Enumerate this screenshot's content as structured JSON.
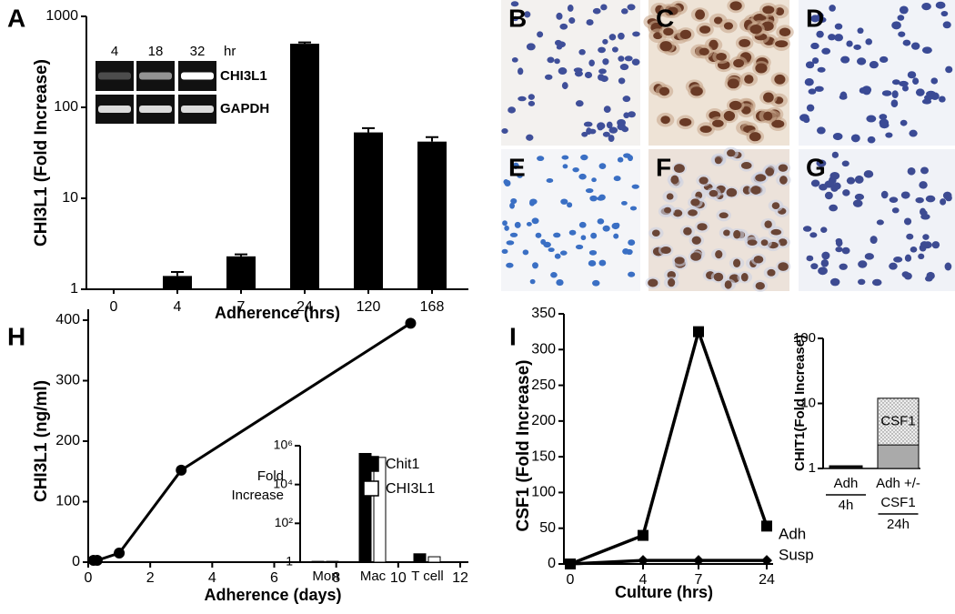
{
  "micrographs": [
    "B",
    "C",
    "D",
    "E",
    "F",
    "G"
  ],
  "chart_data": [
    {
      "type": "bar",
      "panel": "A",
      "ylabel": "CHI3L1 (Fold Increase)",
      "xlabel": "Adherence (hrs)",
      "categories": [
        "0",
        "4",
        "7",
        "24",
        "120",
        "168"
      ],
      "values": [
        1,
        1.4,
        2.3,
        500,
        53,
        42
      ],
      "errors": [
        null,
        0.15,
        0.12,
        18,
        6,
        5
      ],
      "color": "#000000",
      "log_y": true,
      "ylim": [
        1,
        1000
      ],
      "yticks": [
        1,
        10,
        100,
        1000
      ],
      "gel_inset": {
        "lanes": [
          "4",
          "18",
          "32"
        ],
        "unit": "hr",
        "genes": [
          "CHI3L1",
          "GAPDH"
        ]
      }
    },
    {
      "type": "line",
      "panel": "H",
      "ylabel": "CHI3L1 (ng/ml)",
      "xlabel": "Adherence (days)",
      "x": [
        0.17,
        0.29,
        1,
        3,
        10.4
      ],
      "values": [
        3,
        3,
        15,
        152,
        395
      ],
      "color": "#000000",
      "marker": "circle",
      "xlim": [
        0,
        12
      ],
      "xticks": [
        0,
        2,
        4,
        6,
        8,
        10,
        12
      ],
      "ylim": [
        0,
        400
      ],
      "yticks": [
        0,
        100,
        200,
        300,
        400
      ],
      "inset": {
        "type": "bar",
        "ylabel_lines": [
          "Fold",
          "Increase"
        ],
        "categories": [
          "Mon",
          "Mac",
          "T cell"
        ],
        "log_y": true,
        "ylim": [
          1,
          1000000
        ],
        "yticks": [
          1,
          {
            "value": 100,
            "label": "10²"
          },
          {
            "value": 10000,
            "label": "10⁴"
          },
          {
            "value": 1000000,
            "label": "10⁶"
          }
        ],
        "series": [
          {
            "name": "Chit1",
            "color": "#000000",
            "values": [
              1.1,
              400000,
              2.7
            ]
          },
          {
            "name": "CHI3L1",
            "color": "#ffffff",
            "values": [
              1.1,
              250000,
              1.9
            ]
          }
        ]
      }
    },
    {
      "type": "line",
      "panel": "I",
      "ylabel": "CSF1 (Fold Increase)",
      "xlabel": "Culture (hrs)",
      "categories": [
        "0",
        "4",
        "7",
        "24"
      ],
      "series": [
        {
          "name": "Adh",
          "color": "#000000",
          "marker": "square",
          "values": [
            0,
            40,
            325,
            53
          ]
        },
        {
          "name": "Susp",
          "color": "#000000",
          "marker": "diamond",
          "values": [
            0,
            5,
            5,
            5
          ]
        }
      ],
      "ylim": [
        0,
        350
      ],
      "yticks": [
        0,
        50,
        100,
        150,
        200,
        250,
        300,
        350
      ],
      "inset": {
        "type": "bar",
        "ylabel": "CHIT1(Fold Increase)",
        "categories": [
          [
            "Adh",
            "4h"
          ],
          [
            "Adh +/-",
            "CSF1",
            "24h"
          ]
        ],
        "log_y": true,
        "ylim": [
          1,
          100
        ],
        "yticks": [
          1,
          10,
          100
        ],
        "series": [
          {
            "colors": [
              "#111111",
              "#aaaaaa"
            ],
            "values": [
              1.1,
              2.3
            ]
          },
          {
            "name": "CSF1",
            "color": "#dddddd",
            "pattern": "dots",
            "values": [
              null,
              12
            ]
          }
        ]
      }
    }
  ]
}
